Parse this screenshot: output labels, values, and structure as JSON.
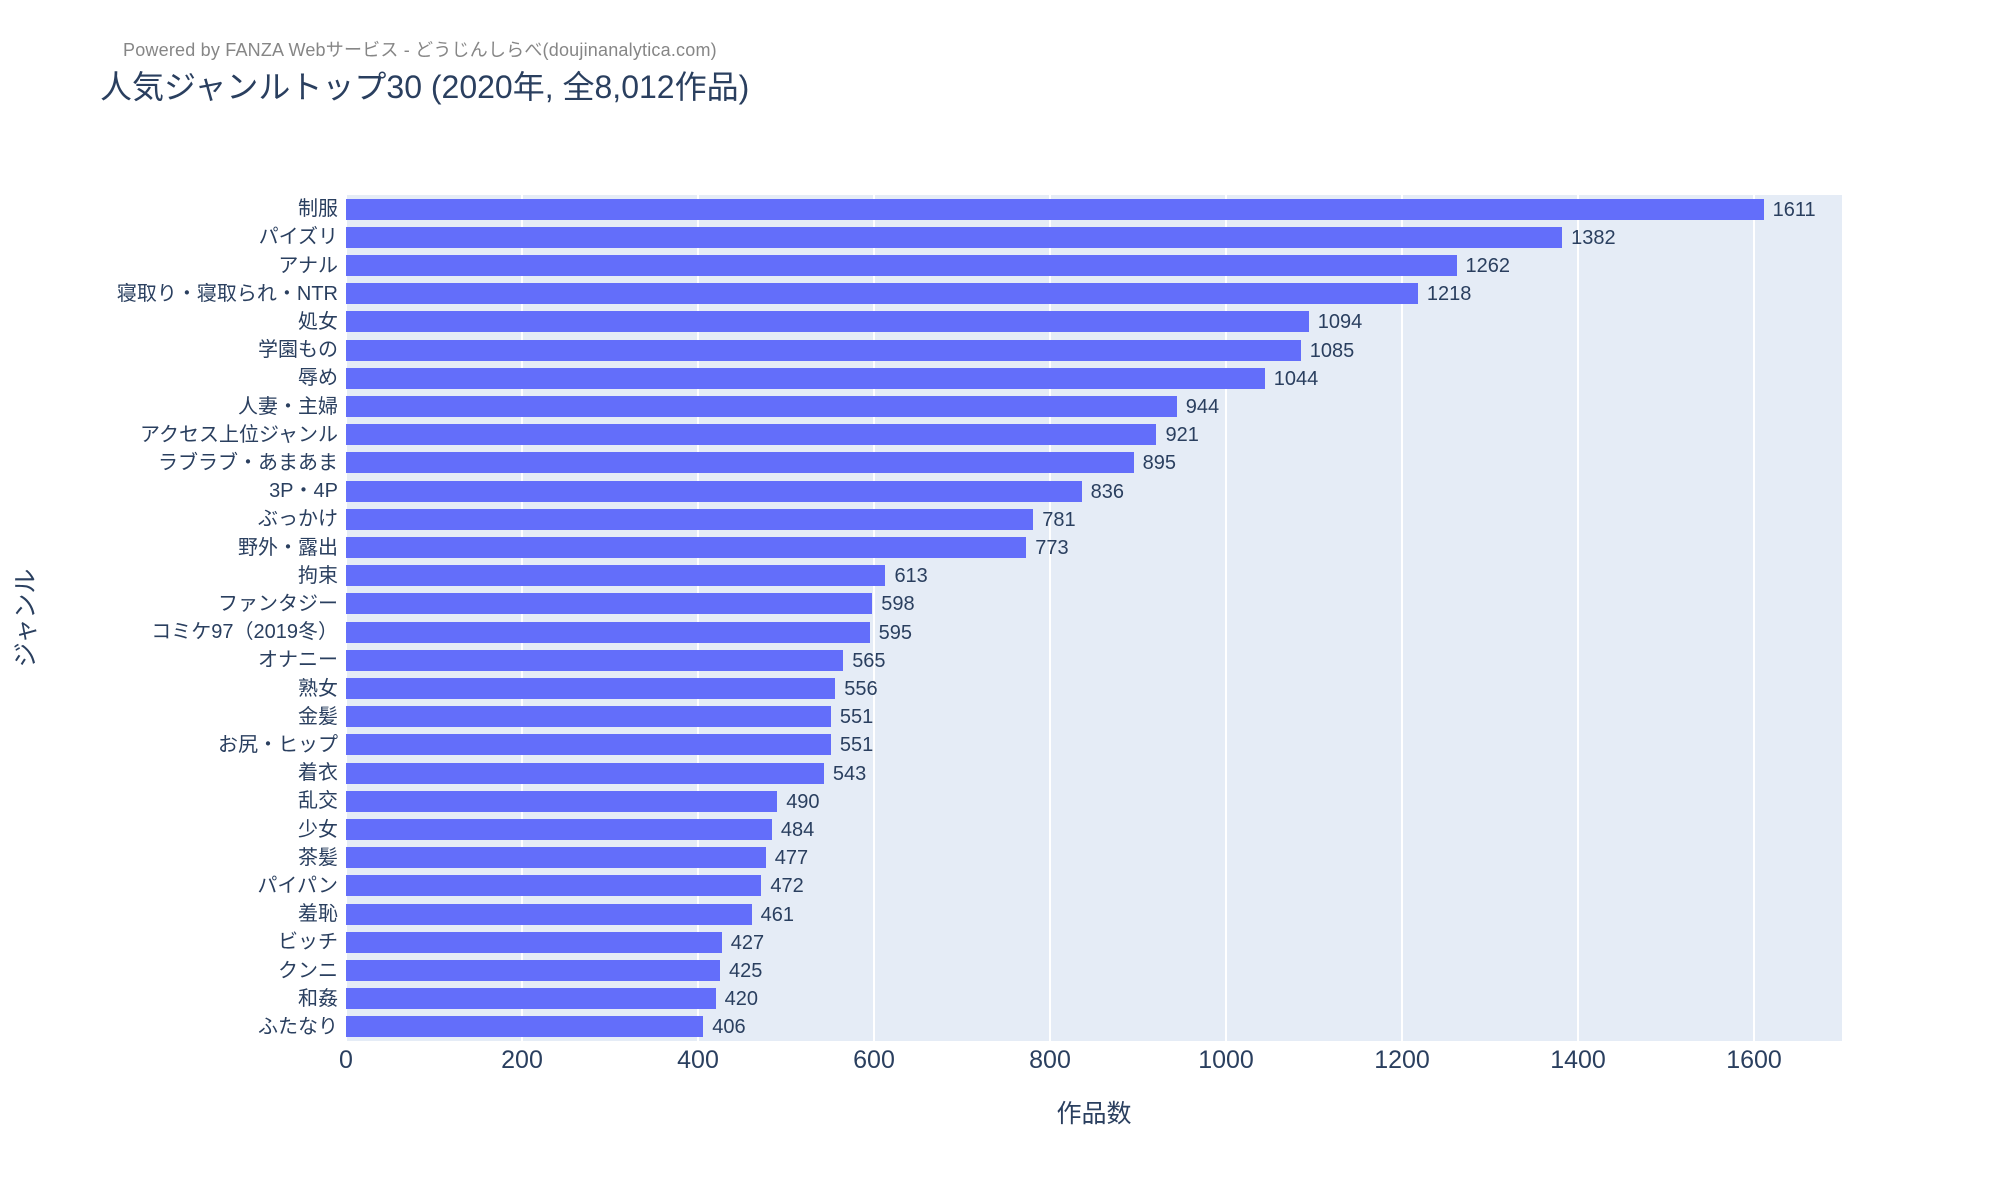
{
  "powered_by": "Powered by FANZA Webサービス - どうじんしらべ(doujinanalytica.com)",
  "chart_data": {
    "type": "bar",
    "orientation": "horizontal",
    "title": "人気ジャンルトップ30 (2020年, 全8,012作品)",
    "xlabel": "作品数",
    "ylabel": "ジャンル",
    "xlim": [
      0,
      1700
    ],
    "xticks": [
      0,
      200,
      400,
      600,
      800,
      1000,
      1200,
      1400,
      1600
    ],
    "grid": true,
    "legend_position": "none",
    "categories": [
      "制服",
      "パイズリ",
      "アナル",
      "寝取り・寝取られ・NTR",
      "処女",
      "学園もの",
      "辱め",
      "人妻・主婦",
      "アクセス上位ジャンル",
      "ラブラブ・あまあま",
      "3P・4P",
      "ぶっかけ",
      "野外・露出",
      "拘束",
      "ファンタジー",
      "コミケ97（2019冬）",
      "オナニー",
      "熟女",
      "金髪",
      "お尻・ヒップ",
      "着衣",
      "乱交",
      "少女",
      "茶髪",
      "パイパン",
      "羞恥",
      "ビッチ",
      "クンニ",
      "和姦",
      "ふたなり"
    ],
    "values": [
      1611,
      1382,
      1262,
      1218,
      1094,
      1085,
      1044,
      944,
      921,
      895,
      836,
      781,
      773,
      613,
      598,
      595,
      565,
      556,
      551,
      551,
      543,
      490,
      484,
      477,
      472,
      461,
      427,
      425,
      420,
      406
    ],
    "colors": {
      "bar": "#636EFA",
      "plot_background": "#E5ECF6",
      "gridline": "#FFFFFF",
      "text": "#2A3F5F",
      "powered_by_text": "#868686"
    }
  }
}
